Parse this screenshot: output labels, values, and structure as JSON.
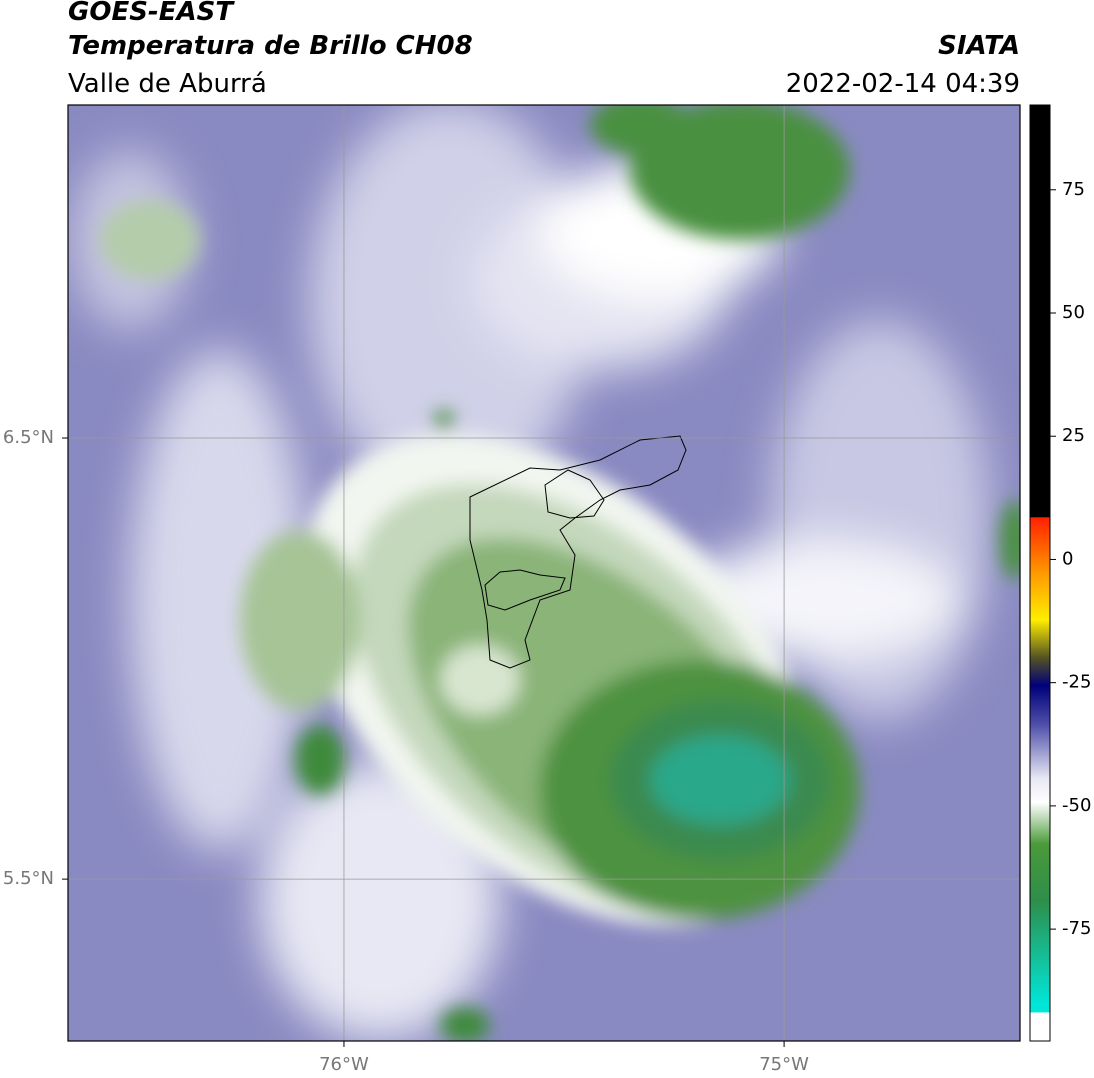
{
  "header": {
    "title": "GOES-EAST",
    "subtitle": "Temperatura de Brillo CH08",
    "region": "Valle de Aburrá",
    "source": "SIATA",
    "datetime": "2022-02-14 04:39"
  },
  "map": {
    "xlim": [
      -76.627,
      -74.464
    ],
    "ylim": [
      5.133,
      7.255
    ],
    "xticks": [
      {
        "value": -76,
        "label": "76°W"
      },
      {
        "value": -75,
        "label": "75°W"
      }
    ],
    "yticks": [
      {
        "value": 6.5,
        "label": "6.5°N"
      },
      {
        "value": 5.5,
        "label": "5.5°N"
      }
    ],
    "grid": true
  },
  "colorbar": {
    "lim": [
      -97.7,
      92.2
    ],
    "ticks": [
      75,
      50,
      25,
      0,
      -25,
      -50,
      -75
    ]
  }
}
